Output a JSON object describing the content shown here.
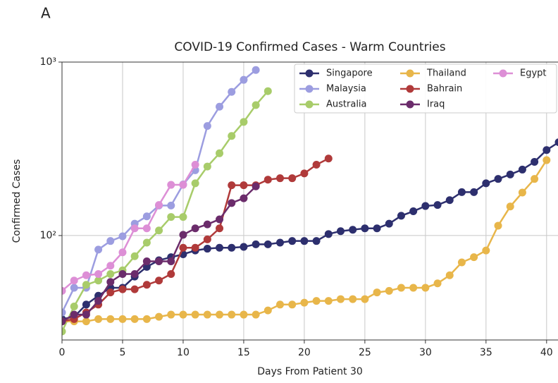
{
  "panel_label": "A",
  "chart_data": {
    "type": "line",
    "title": "COVID-19 Confirmed Cases - Warm Countries",
    "x_label": "Days From Patient 30",
    "y_label": "Confirmed Cases",
    "log_y": true,
    "grid": true,
    "legend_position": "upper right",
    "xlim": [
      0,
      41
    ],
    "ylim": [
      25,
      1000
    ],
    "xticks": [
      0,
      5,
      10,
      15,
      20,
      25,
      30,
      35,
      40
    ],
    "yticks": [
      {
        "value": 100,
        "label": "10²"
      },
      {
        "value": 1000,
        "label": "10³"
      }
    ],
    "x": [
      0,
      1,
      2,
      3,
      4,
      5,
      6,
      7,
      8,
      9,
      10,
      11,
      12,
      13,
      14,
      15,
      16,
      17,
      18,
      19,
      20,
      21,
      22,
      23,
      24,
      25,
      26,
      27,
      28,
      29,
      30,
      31,
      32,
      33,
      34,
      35,
      36,
      37,
      38,
      39,
      40,
      41
    ],
    "series": [
      {
        "name": "Singapore",
        "color": "#2d2f6e",
        "values": [
          33,
          34,
          40,
          45,
          50,
          50,
          58,
          66,
          72,
          75,
          78,
          82,
          84,
          85,
          85,
          86,
          89,
          89,
          91,
          93,
          93,
          93,
          102,
          106,
          108,
          110,
          110,
          117,
          130,
          138,
          148,
          150,
          160,
          178,
          178,
          200,
          212,
          225,
          240,
          266,
          311,
          345
        ]
      },
      {
        "name": "Malaysia",
        "color": "#9c9de0",
        "values": [
          36,
          50,
          50,
          83,
          93,
          99,
          117,
          129,
          149,
          149,
          197,
          238,
          428,
          553,
          673,
          790,
          900,
          null,
          null,
          null,
          null,
          null,
          null,
          null,
          null,
          null,
          null,
          null,
          null,
          null,
          null,
          null,
          null,
          null,
          null,
          null,
          null,
          null,
          null,
          null,
          null,
          null
        ]
      },
      {
        "name": "Australia",
        "color": "#a8cc6a",
        "values": [
          28,
          39,
          52,
          55,
          60,
          63,
          76,
          91,
          107,
          128,
          128,
          200,
          250,
          298,
          375,
          452,
          565,
          680,
          null,
          null,
          null,
          null,
          null,
          null,
          null,
          null,
          null,
          null,
          null,
          null,
          null,
          null,
          null,
          null,
          null,
          null,
          null,
          null,
          null,
          null,
          null,
          null
        ]
      },
      {
        "name": "Thailand",
        "color": "#e8b64a",
        "values": [
          32,
          32,
          32,
          33,
          33,
          33,
          33,
          33,
          34,
          35,
          35,
          35,
          35,
          35,
          35,
          35,
          35,
          37,
          40,
          40,
          41,
          42,
          42,
          43,
          43,
          43,
          47,
          48,
          50,
          50,
          50,
          53,
          59,
          70,
          75,
          82,
          114,
          147,
          177,
          212,
          272,
          null
        ]
      },
      {
        "name": "Bahrain",
        "color": "#b03a3a",
        "values": [
          32,
          33,
          36,
          40,
          47,
          49,
          49,
          52,
          55,
          60,
          85,
          85,
          95,
          110,
          195,
          195,
          195,
          210,
          214,
          214,
          228,
          256,
          278,
          null,
          null,
          null,
          null,
          null,
          null,
          null,
          null,
          null,
          null,
          null,
          null,
          null,
          null,
          null,
          null,
          null,
          null,
          null
        ]
      },
      {
        "name": "Iraq",
        "color": "#6b2c6b",
        "values": [
          32,
          35,
          35,
          42,
          54,
          60,
          60,
          71,
          71,
          71,
          101,
          110,
          116,
          124,
          154,
          164,
          192,
          null,
          null,
          null,
          null,
          null,
          null,
          null,
          null,
          null,
          null,
          null,
          null,
          null,
          null,
          null,
          null,
          null,
          null,
          null,
          null,
          null,
          null,
          null,
          null,
          null
        ]
      },
      {
        "name": "Egypt",
        "color": "#dd8fd6",
        "values": [
          48,
          55,
          59,
          60,
          67,
          80,
          110,
          110,
          150,
          196,
          196,
          256,
          null,
          null,
          null,
          null,
          null,
          null,
          null,
          null,
          null,
          null,
          null,
          null,
          null,
          null,
          null,
          null,
          null,
          null,
          null,
          null,
          null,
          null,
          null,
          null,
          null,
          null,
          null,
          null,
          null,
          null
        ]
      }
    ]
  }
}
